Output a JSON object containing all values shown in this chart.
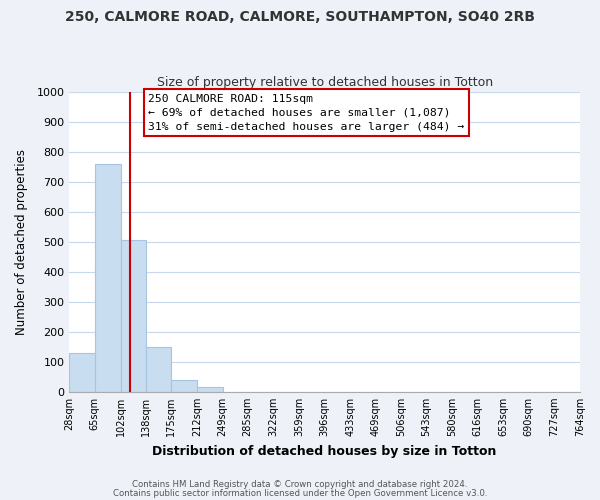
{
  "title": "250, CALMORE ROAD, CALMORE, SOUTHAMPTON, SO40 2RB",
  "subtitle": "Size of property relative to detached houses in Totton",
  "xlabel": "Distribution of detached houses by size in Totton",
  "ylabel": "Number of detached properties",
  "bar_edges": [
    28,
    65,
    102,
    138,
    175,
    212,
    249,
    285,
    322,
    359,
    396,
    433,
    469,
    506,
    543,
    580,
    616,
    653,
    690,
    727,
    764
  ],
  "bar_heights": [
    128,
    760,
    505,
    150,
    40,
    15,
    0,
    0,
    0,
    0,
    0,
    0,
    0,
    0,
    0,
    0,
    0,
    0,
    0,
    0
  ],
  "bar_color": "#c9ddf0",
  "bar_edge_color": "#a8c4e0",
  "ylim": [
    0,
    1000
  ],
  "yticks": [
    0,
    100,
    200,
    300,
    400,
    500,
    600,
    700,
    800,
    900,
    1000
  ],
  "property_line_x": 115,
  "property_line_color": "#cc0000",
  "annotation_title": "250 CALMORE ROAD: 115sqm",
  "annotation_line1": "← 69% of detached houses are smaller (1,087)",
  "annotation_line2": "31% of semi-detached houses are larger (484) →",
  "footer_line1": "Contains HM Land Registry data © Crown copyright and database right 2024.",
  "footer_line2": "Contains public sector information licensed under the Open Government Licence v3.0.",
  "bg_color": "#eef2f8",
  "plot_bg_color": "#ffffff",
  "grid_color": "#c8d8ec"
}
